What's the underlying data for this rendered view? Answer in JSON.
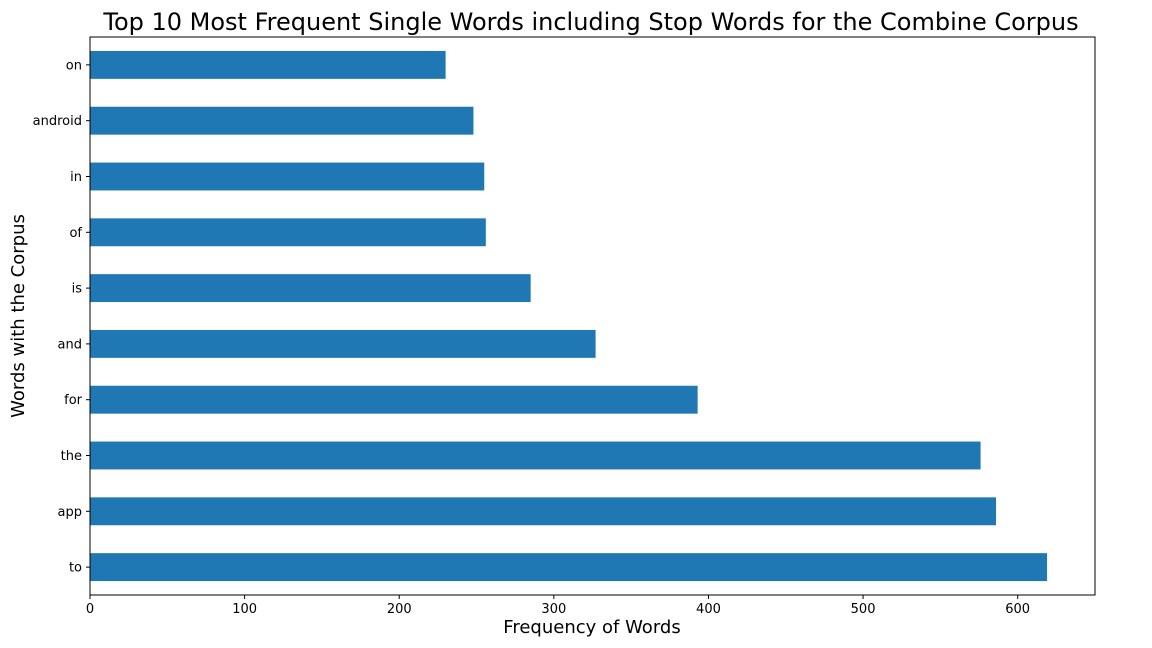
{
  "chart_data": {
    "type": "bar",
    "orientation": "horizontal",
    "title": "Top 10 Most Frequent Single Words including Stop Words for the Combine Corpus",
    "xlabel": "Frequency of Words",
    "ylabel": "Words with the Corpus",
    "categories": [
      "to",
      "app",
      "the",
      "for",
      "and",
      "is",
      "of",
      "in",
      "android",
      "on"
    ],
    "values": [
      619,
      586,
      576,
      393,
      327,
      285,
      256,
      255,
      248,
      230
    ],
    "xlim": [
      0,
      650
    ],
    "xticks": [
      0,
      100,
      200,
      300,
      400,
      500,
      600
    ],
    "grid": false,
    "bar_color": "#1f77b4"
  }
}
